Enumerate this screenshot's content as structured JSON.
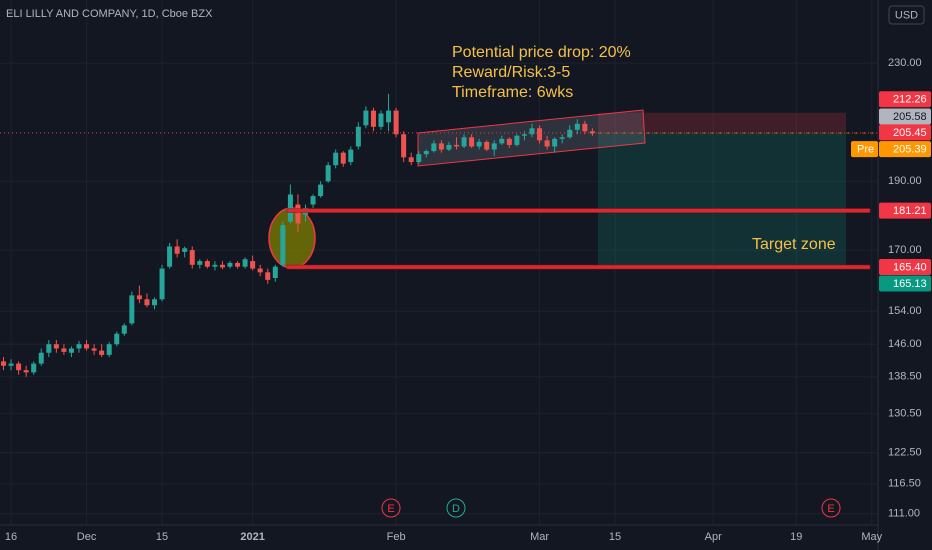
{
  "chart_data": {
    "type": "candlestick",
    "title": "ELI LILLY AND COMPANY, 1D, Cboe BZX",
    "currency": "USD",
    "log_scale": true,
    "grid": true,
    "up_color": "#26a69a",
    "down_color": "#ef5350",
    "ylim": [
      109,
      254.7
    ],
    "yticks": [
      {
        "value": 230,
        "label": "230.00"
      },
      {
        "value": 190,
        "label": "190.00"
      },
      {
        "value": 170,
        "label": "170.00"
      },
      {
        "value": 154,
        "label": "154.00"
      },
      {
        "value": 146,
        "label": "146.00"
      },
      {
        "value": 138.5,
        "label": "138.50"
      },
      {
        "value": 130.5,
        "label": "130.50"
      },
      {
        "value": 122.5,
        "label": "122.50"
      },
      {
        "value": 116.5,
        "label": "116.50"
      },
      {
        "value": 111,
        "label": "111.00"
      }
    ],
    "categories": [
      null,
      "16",
      null,
      null,
      null,
      null,
      null,
      null,
      null,
      null,
      null,
      "Dec",
      null,
      null,
      null,
      null,
      null,
      null,
      null,
      null,
      null,
      "15",
      null,
      null,
      null,
      null,
      null,
      null,
      null,
      null,
      null,
      null,
      null,
      "2021",
      null,
      null,
      null,
      null,
      null,
      null,
      null,
      null,
      null,
      null,
      null,
      null,
      null,
      null,
      null,
      null,
      null,
      null,
      "Feb",
      null,
      null,
      null,
      null,
      null,
      null,
      null,
      null,
      null,
      null,
      null,
      null,
      null,
      null,
      null,
      null,
      null,
      null,
      "Mar",
      null,
      null,
      null,
      null,
      null,
      null,
      null,
      null,
      null,
      "15",
      null,
      null,
      null,
      null,
      null,
      null,
      null,
      null,
      null,
      null,
      null,
      null,
      "Apr",
      null,
      null,
      null,
      null,
      null,
      null,
      null,
      null,
      null,
      null,
      "19",
      null,
      null,
      null,
      null,
      null,
      null,
      null,
      null,
      null,
      "May"
    ],
    "open": [
      142,
      141,
      141.5,
      140,
      139.5,
      141.5,
      144,
      146,
      145,
      144,
      145,
      146,
      145,
      144.5,
      143.5,
      146,
      148.5,
      151,
      158,
      157,
      155.5,
      157,
      165.5,
      171,
      169.5,
      170,
      166,
      167,
      165.5,
      166,
      165.5,
      166.5,
      165.5,
      167,
      165,
      164,
      162.5,
      166,
      178,
      183,
      180,
      183,
      185.5,
      190,
      195,
      199,
      196,
      201,
      208,
      213,
      207.5,
      209,
      213,
      205,
      197.5,
      196,
      198.5,
      199.5,
      202,
      200,
      201.5,
      201,
      204,
      201,
      202.5,
      200,
      202,
      203.5,
      201.5,
      204.5,
      205,
      207,
      203,
      201,
      203.5,
      204,
      206.5,
      208.5,
      206,
      null,
      null,
      null,
      null,
      null,
      null,
      null,
      null,
      null,
      null,
      null,
      null,
      null,
      null,
      null,
      null,
      null,
      null,
      null,
      null,
      null,
      null,
      null,
      null,
      null,
      null,
      null,
      null,
      null,
      null,
      null,
      null,
      null,
      null,
      null,
      null,
      null
    ],
    "high": [
      143,
      142.5,
      142,
      141,
      142,
      145,
      147,
      147,
      146,
      145.5,
      146.8,
      147,
      146,
      146,
      146.5,
      149,
      151,
      159,
      160.5,
      158.5,
      157.5,
      166,
      172,
      173,
      171,
      171,
      167.5,
      167.5,
      167,
      167,
      167,
      167,
      168,
      168.5,
      166,
      165,
      166,
      178,
      189,
      186,
      183,
      186,
      190,
      196,
      200,
      199.5,
      201,
      209,
      214.5,
      214,
      213,
      218.8,
      214,
      206,
      199,
      199.5,
      200,
      203,
      203,
      202.5,
      204,
      205,
      205,
      203.5,
      203,
      203,
      204.5,
      204,
      205,
      206,
      208.5,
      208,
      204.5,
      204,
      205,
      208,
      210,
      209.5,
      207,
      null,
      null,
      null,
      null,
      null,
      null,
      null,
      null,
      null,
      null,
      null,
      null,
      null,
      null,
      null,
      null,
      null,
      null,
      null,
      null,
      null,
      null,
      null,
      null,
      null,
      null,
      null,
      null,
      null,
      null,
      null,
      null,
      null,
      null,
      null,
      null,
      null
    ],
    "low": [
      140,
      140,
      139,
      138.5,
      139,
      141,
      143,
      144,
      143.5,
      143,
      144,
      144.5,
      143.5,
      143,
      143,
      145.5,
      148,
      150.5,
      156,
      155,
      154.5,
      156.5,
      165,
      168,
      168,
      165,
      165,
      165,
      164.5,
      164.8,
      165,
      165,
      165,
      164.5,
      163,
      161,
      161.5,
      165.5,
      177.5,
      175,
      178,
      182,
      185,
      189.5,
      194,
      194.5,
      195,
      200,
      207,
      206,
      206.5,
      206,
      204,
      196,
      195,
      195.5,
      197.5,
      199,
      199,
      199.5,
      200,
      200.5,
      200.5,
      200,
      199.5,
      198,
      201.5,
      200.5,
      201,
      203,
      204,
      202,
      200,
      199,
      202,
      203.5,
      205,
      205,
      204.5,
      null,
      null,
      null,
      null,
      null,
      null,
      null,
      null,
      null,
      null,
      null,
      null,
      null,
      null,
      null,
      null,
      null,
      null,
      null,
      null,
      null,
      null,
      null,
      null,
      null,
      null,
      null,
      null,
      null,
      null,
      null,
      null,
      null,
      null,
      null,
      null,
      null
    ],
    "close": [
      141,
      141.5,
      140,
      139.5,
      141.5,
      144,
      146,
      145,
      144.2,
      145,
      146,
      145,
      144.5,
      143.5,
      146,
      148.5,
      150.5,
      158,
      157,
      155.5,
      157,
      165,
      171,
      169,
      170.5,
      166,
      167,
      165.5,
      166,
      165.3,
      166.5,
      165.5,
      167.5,
      165,
      164,
      162,
      165.5,
      177,
      186,
      177.5,
      182,
      185.5,
      189,
      195,
      199,
      195.5,
      200,
      207.5,
      213,
      207.5,
      212,
      213,
      205,
      197.5,
      196,
      198.5,
      199.5,
      202,
      200,
      201.5,
      201,
      204,
      201,
      202.5,
      200,
      202,
      203.5,
      201.5,
      204.5,
      205,
      207,
      203,
      201,
      203.5,
      204,
      206.5,
      208.5,
      206,
      205.45,
      null,
      null,
      null,
      null,
      null,
      null,
      null,
      null,
      null,
      null,
      null,
      null,
      null,
      null,
      null,
      null,
      null,
      null,
      null,
      null,
      null,
      null,
      null,
      null,
      null,
      null,
      null,
      null,
      null,
      null,
      null,
      null,
      null,
      null,
      null,
      null,
      null
    ],
    "price_labels": [
      {
        "value": 212.26,
        "color": "#f23645"
      },
      {
        "value": 205.58,
        "color": "#b2b5be"
      },
      {
        "value": 205.45,
        "color": "#f23645"
      },
      {
        "value": 205.39,
        "prefix": "Pre",
        "color": "#ff9800"
      },
      {
        "value": 181.21,
        "color": "#f23645"
      },
      {
        "value": 165.4,
        "label": "165.40",
        "color": "#f23645"
      },
      {
        "value": 165.13,
        "color": "#089981"
      }
    ],
    "annotations": [
      "Potential price drop: 20%",
      "Reward/Risk:3-5",
      "Timeframe: 6wks",
      "Target zone"
    ],
    "events": [
      "E",
      "D",
      "E"
    ]
  }
}
